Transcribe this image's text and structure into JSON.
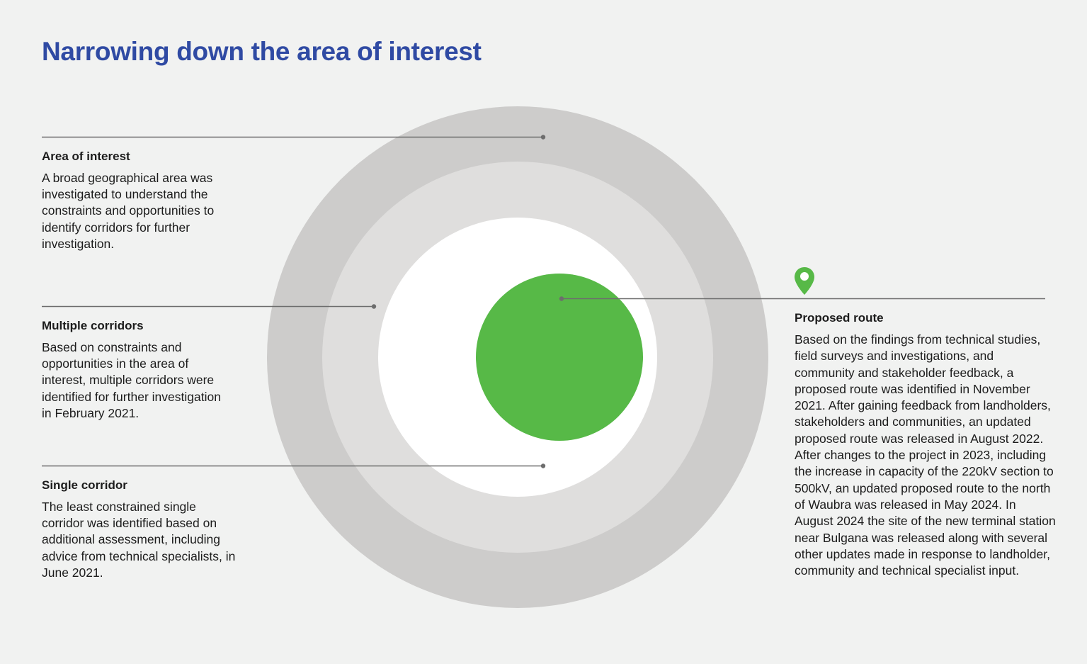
{
  "title": "Narrowing down the area of interest",
  "stages": {
    "area_of_interest": {
      "heading": "Area of interest",
      "description": "A broad geographical area was investigated to understand the constraints and opportunities to identify corridors for further investigation."
    },
    "multiple_corridors": {
      "heading": "Multiple corridors",
      "description": "Based on constraints and opportunities in the area of interest, multiple corridors were identified for further investigation in February 2021."
    },
    "single_corridor": {
      "heading": "Single corridor",
      "description": "The least constrained single corridor was identified based on additional assessment, including advice from technical specialists, in June 2021."
    },
    "proposed_route": {
      "heading": "Proposed route",
      "description": "Based on the findings from technical studies, field surveys and investigations, and community and stakeholder feedback, a proposed route was identified in November 2021. After gaining feedback from landholders, stakeholders and communities, an updated proposed route was released in August 2022. After changes to the project in 2023, including the increase in capacity of the 220kV section to 500kV, an updated proposed route to the north of Waubra was released in May 2024. In August 2024 the site of the new terminal station near Bulgana was released along with several other updates made in response to landholder, community and technical specialist input."
    }
  },
  "icons": {
    "proposed_route_marker": "map-pin-icon"
  },
  "colors": {
    "title": "#2f4aa3",
    "outer_ring": "#cdcccb",
    "middle_ring": "#dfdedd",
    "inner_ring": "#ffffff",
    "center": "#57b947",
    "leader_line": "#6d6d6d"
  }
}
